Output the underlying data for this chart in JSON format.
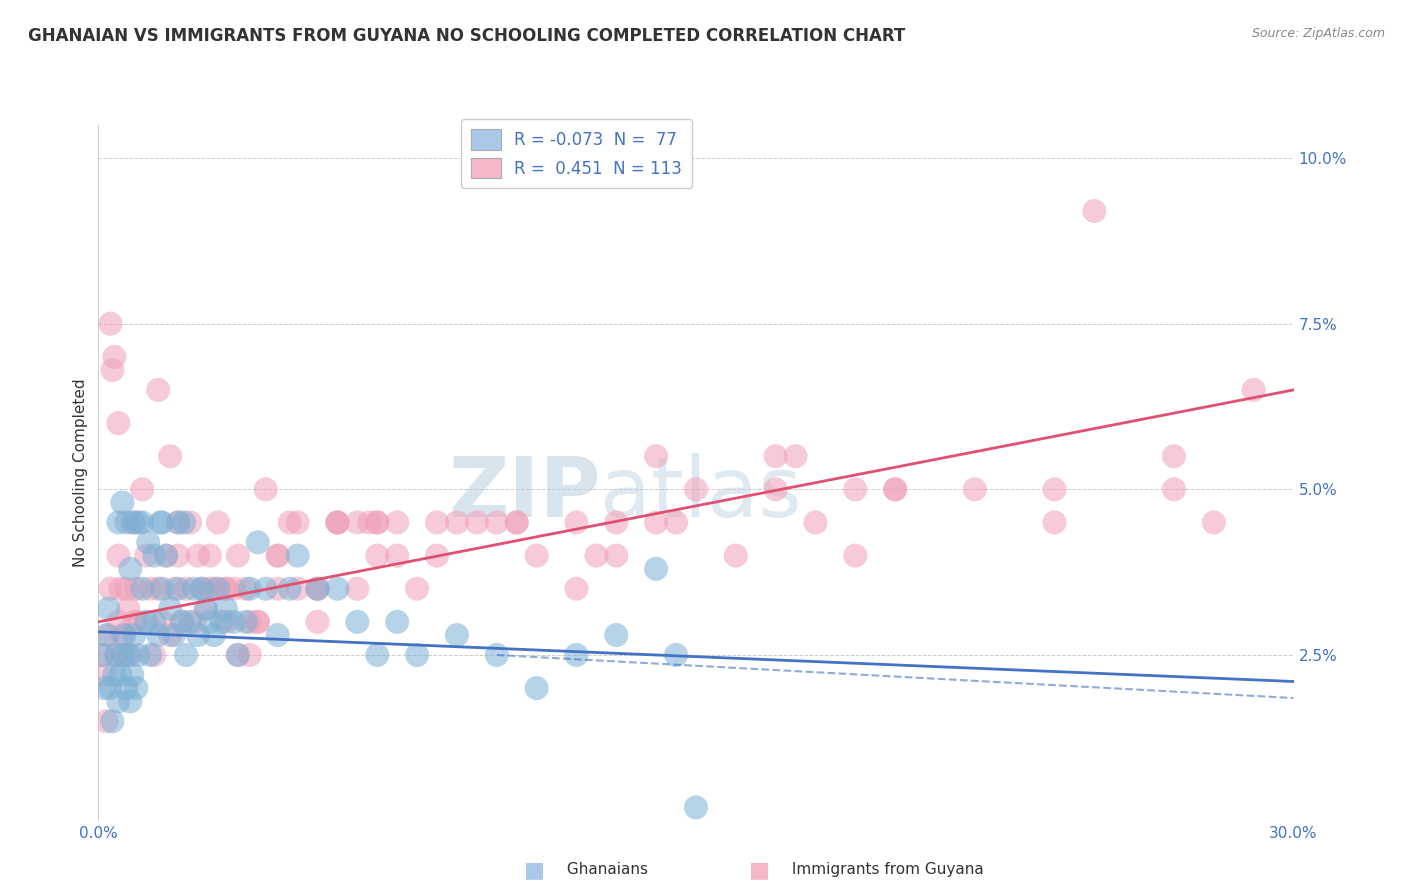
{
  "title": "GHANAIAN VS IMMIGRANTS FROM GUYANA NO SCHOOLING COMPLETED CORRELATION CHART",
  "source": "Source: ZipAtlas.com",
  "ylabel": "No Schooling Completed",
  "xlim": [
    0.0,
    30.0
  ],
  "ylim": [
    0.0,
    10.5
  ],
  "yticks": [
    0.0,
    2.5,
    5.0,
    7.5,
    10.0
  ],
  "ytick_labels": [
    "",
    "2.5%",
    "5.0%",
    "7.5%",
    "10.0%"
  ],
  "legend_entries": [
    {
      "label": "R = -0.073  N =  77"
    },
    {
      "label": "R =  0.451  N = 113"
    }
  ],
  "watermark": "ZIPatlas",
  "background_color": "#ffffff",
  "grid_color": "#cccccc",
  "blue_dot_color": "#7bafd4",
  "pink_dot_color": "#f0a0b8",
  "blue_line_color": "#4472c4",
  "pink_line_color": "#e05070",
  "blue_legend_color": "#aac8e8",
  "pink_legend_color": "#f4b8c8",
  "title_fontsize": 12,
  "axis_label_fontsize": 11,
  "tick_fontsize": 11,
  "legend_fontsize": 12,
  "watermark_fontsize": 60,
  "blue_solid_line": {
    "x0": 0.0,
    "y0": 2.85,
    "x1": 30.0,
    "y1": 2.1
  },
  "blue_dashed_line": {
    "x0": 10.0,
    "y0": 2.5,
    "x1": 30.0,
    "y1": 1.85
  },
  "pink_solid_line": {
    "x0": 0.0,
    "y0": 3.0,
    "x1": 30.0,
    "y1": 6.5
  },
  "blue_points_x": [
    0.1,
    0.15,
    0.2,
    0.25,
    0.3,
    0.35,
    0.4,
    0.45,
    0.5,
    0.55,
    0.6,
    0.65,
    0.7,
    0.75,
    0.8,
    0.85,
    0.9,
    0.95,
    1.0,
    1.1,
    1.2,
    1.3,
    1.4,
    1.5,
    1.6,
    1.7,
    1.8,
    1.9,
    2.0,
    2.1,
    2.2,
    2.3,
    2.4,
    2.5,
    2.6,
    2.7,
    2.8,
    2.9,
    3.0,
    3.2,
    3.4,
    3.5,
    3.7,
    3.8,
    4.0,
    4.2,
    4.5,
    5.0,
    5.5,
    6.0,
    6.5,
    7.0,
    7.5,
    8.0,
    9.0,
    10.0,
    11.0,
    12.0,
    13.0,
    14.0,
    14.5,
    15.0,
    4.8,
    3.1,
    2.15,
    1.55,
    0.5,
    0.6,
    0.7,
    0.8,
    0.9,
    1.0,
    1.1,
    1.25,
    1.4,
    1.6,
    2.0
  ],
  "blue_points_y": [
    2.5,
    2.0,
    2.8,
    3.2,
    2.0,
    1.5,
    2.2,
    2.5,
    1.8,
    2.2,
    2.5,
    2.8,
    2.0,
    2.5,
    1.8,
    2.2,
    2.8,
    2.0,
    2.5,
    3.5,
    3.0,
    2.5,
    3.0,
    2.8,
    3.5,
    4.0,
    3.2,
    2.8,
    3.5,
    3.0,
    2.5,
    3.0,
    3.5,
    2.8,
    3.5,
    3.2,
    3.0,
    2.8,
    3.5,
    3.2,
    3.0,
    2.5,
    3.0,
    3.5,
    4.2,
    3.5,
    2.8,
    4.0,
    3.5,
    3.5,
    3.0,
    2.5,
    3.0,
    2.5,
    2.8,
    2.5,
    2.0,
    2.5,
    2.8,
    3.8,
    2.5,
    0.2,
    3.5,
    3.0,
    4.5,
    4.5,
    4.5,
    4.8,
    4.5,
    3.8,
    4.5,
    4.5,
    4.5,
    4.2,
    4.0,
    4.5,
    4.5
  ],
  "pink_points_x": [
    0.1,
    0.15,
    0.2,
    0.25,
    0.3,
    0.35,
    0.4,
    0.45,
    0.5,
    0.55,
    0.6,
    0.65,
    0.7,
    0.75,
    0.8,
    0.85,
    0.9,
    0.95,
    1.0,
    1.1,
    1.2,
    1.3,
    1.4,
    1.5,
    1.6,
    1.7,
    1.8,
    1.9,
    2.0,
    2.1,
    2.2,
    2.3,
    2.4,
    2.5,
    2.6,
    2.7,
    2.8,
    2.9,
    3.0,
    3.2,
    3.4,
    3.5,
    3.7,
    3.8,
    4.0,
    4.2,
    4.5,
    5.0,
    5.5,
    6.0,
    6.5,
    7.0,
    7.5,
    8.0,
    9.0,
    10.0,
    11.0,
    12.0,
    13.0,
    14.0,
    15.0,
    16.0,
    17.0,
    18.0,
    19.0,
    20.0,
    22.0,
    24.0,
    25.0,
    27.0,
    28.0,
    2.0,
    1.5,
    0.5,
    0.5,
    0.3,
    3.5,
    3.2,
    4.0,
    4.5,
    5.5,
    6.0,
    7.0,
    8.5,
    10.5,
    12.5,
    14.5,
    17.5,
    20.0,
    24.0,
    27.0,
    29.0,
    3.8,
    2.8,
    1.8,
    5.5,
    4.5,
    6.5,
    6.8,
    7.5,
    9.5,
    12.0,
    14.0,
    17.0,
    19.0,
    3.2,
    5.0,
    6.0,
    4.8,
    7.0,
    8.5,
    10.5,
    13.0
  ],
  "pink_points_y": [
    2.5,
    2.2,
    1.5,
    2.8,
    7.5,
    6.8,
    7.0,
    2.5,
    3.0,
    3.5,
    2.8,
    2.5,
    3.5,
    3.2,
    2.5,
    4.5,
    3.0,
    3.5,
    3.0,
    5.0,
    4.0,
    3.5,
    2.5,
    6.5,
    3.0,
    4.0,
    2.8,
    3.5,
    4.5,
    3.0,
    3.5,
    4.5,
    3.0,
    4.0,
    3.5,
    3.2,
    4.0,
    3.5,
    4.5,
    3.0,
    3.5,
    4.0,
    3.5,
    2.5,
    3.0,
    5.0,
    3.5,
    4.5,
    3.5,
    4.5,
    3.5,
    4.0,
    4.5,
    3.5,
    4.5,
    4.5,
    4.0,
    3.5,
    4.0,
    4.5,
    5.0,
    4.0,
    5.5,
    4.5,
    4.0,
    5.0,
    5.0,
    4.5,
    9.2,
    5.0,
    4.5,
    4.0,
    3.5,
    4.0,
    6.0,
    3.5,
    2.5,
    3.5,
    3.0,
    4.0,
    3.0,
    4.5,
    4.5,
    4.5,
    4.5,
    4.0,
    4.5,
    5.5,
    5.0,
    5.0,
    5.5,
    6.5,
    3.0,
    3.5,
    5.5,
    3.5,
    4.0,
    4.5,
    4.5,
    4.0,
    4.5,
    4.5,
    5.5,
    5.0,
    5.0,
    3.5,
    3.5,
    4.5,
    4.5,
    4.5,
    4.0,
    4.5,
    4.5
  ]
}
